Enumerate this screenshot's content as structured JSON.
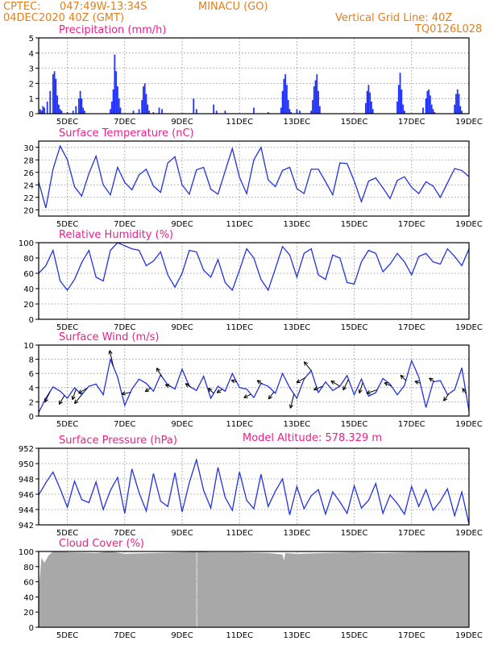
{
  "header": {
    "source": "CPTEC:",
    "coords": "047:49W-13:34S",
    "location": "MINACU (GO)",
    "run": "04DEC2020 40Z (GMT)",
    "grid_note": "Vertical Grid Line: 40Z",
    "model": "TQ0126L028"
  },
  "altitude_label": "Model Altitude: 578.329 m",
  "colors": {
    "header": "#e0801c",
    "title": "#e8208c",
    "series": "#2233dd",
    "precip": "#2233ff",
    "cloud": "#a8a8a8"
  },
  "x_labels": [
    "5DEC",
    "7DEC",
    "9DEC",
    "11DEC",
    "13DEC",
    "15DEC",
    "17DEC",
    "19DEC"
  ],
  "chart_data": [
    {
      "id": "precip",
      "type": "bar",
      "title": "Precipitation (mm/h)",
      "ylim": [
        0,
        5
      ],
      "yticks": [
        0,
        1,
        2,
        3,
        4,
        5
      ],
      "x": [
        4.05,
        4.1,
        4.15,
        4.2,
        4.3,
        4.4,
        4.5,
        4.55,
        4.6,
        4.65,
        4.7,
        4.75,
        4.8,
        5.0,
        5.2,
        5.3,
        5.4,
        5.45,
        5.5,
        5.55,
        5.6,
        6.5,
        6.55,
        6.6,
        6.65,
        6.7,
        6.75,
        6.8,
        6.85,
        7.3,
        7.5,
        7.6,
        7.65,
        7.7,
        7.75,
        7.8,
        7.85,
        8.0,
        8.2,
        8.3,
        9.4,
        9.5,
        10.1,
        10.2,
        10.5,
        11.5,
        12.0,
        12.45,
        12.5,
        12.55,
        12.6,
        12.65,
        12.7,
        12.75,
        12.8,
        13.0,
        13.1,
        13.5,
        13.55,
        13.6,
        13.65,
        13.7,
        13.75,
        13.8,
        15.4,
        15.45,
        15.5,
        15.55,
        15.6,
        15.65,
        16.5,
        16.55,
        16.6,
        16.65,
        16.7,
        16.75,
        17.4,
        17.5,
        17.55,
        17.6,
        17.65,
        17.7,
        17.75,
        17.8,
        18.5,
        18.55,
        18.6,
        18.65,
        18.7,
        18.75
      ],
      "values": [
        0.3,
        0.2,
        0.5,
        0.4,
        0.8,
        1.5,
        2.6,
        2.8,
        2.3,
        1.2,
        0.6,
        0.3,
        0.2,
        0.1,
        0.2,
        0.5,
        1.0,
        1.5,
        1.0,
        0.4,
        0.2,
        0.3,
        0.8,
        1.6,
        3.9,
        2.8,
        1.8,
        1.0,
        0.4,
        0.2,
        0.3,
        0.9,
        1.8,
        2.0,
        1.3,
        0.6,
        0.2,
        0.1,
        0.4,
        0.3,
        1.0,
        0.3,
        0.6,
        0.2,
        0.2,
        0.4,
        0.1,
        0.4,
        1.5,
        2.3,
        2.6,
        1.9,
        0.9,
        0.3,
        0.1,
        0.3,
        0.2,
        0.2,
        0.9,
        1.8,
        2.2,
        2.6,
        1.5,
        0.5,
        0.7,
        1.5,
        1.9,
        1.4,
        0.8,
        0.3,
        0.8,
        1.9,
        2.7,
        1.6,
        0.6,
        0.2,
        0.4,
        1.0,
        1.5,
        1.6,
        1.2,
        0.6,
        0.3,
        0.1,
        0.6,
        1.3,
        1.6,
        1.3,
        0.5,
        0.2
      ]
    },
    {
      "id": "temperature",
      "type": "line",
      "title": "Surface Temperature (nC)",
      "ylim": [
        19,
        31
      ],
      "yticks": [
        20,
        22,
        24,
        26,
        28,
        30
      ],
      "x": [
        4.0,
        4.25,
        4.5,
        4.75,
        5.0,
        5.25,
        5.5,
        5.75,
        6.0,
        6.25,
        6.5,
        6.75,
        7.0,
        7.25,
        7.5,
        7.75,
        8.0,
        8.25,
        8.5,
        8.75,
        9.0,
        9.25,
        9.5,
        9.75,
        10.0,
        10.25,
        10.5,
        10.75,
        11.0,
        11.25,
        11.5,
        11.75,
        12.0,
        12.25,
        12.5,
        12.75,
        13.0,
        13.25,
        13.5,
        13.75,
        14.0,
        14.25,
        14.5,
        14.75,
        15.0,
        15.25,
        15.5,
        15.75,
        16.0,
        16.25,
        16.5,
        16.75,
        17.0,
        17.25,
        17.5,
        17.75,
        18.0,
        18.25,
        18.5,
        18.75,
        19.0
      ],
      "values": [
        24.5,
        20.3,
        26.5,
        30.2,
        28.0,
        23.7,
        22.2,
        25.8,
        28.6,
        24.0,
        22.4,
        26.8,
        24.4,
        23.2,
        25.6,
        26.5,
        23.8,
        22.8,
        27.5,
        28.5,
        24.0,
        22.5,
        26.4,
        26.8,
        23.3,
        22.5,
        26.2,
        29.8,
        25.2,
        22.6,
        28.0,
        30.0,
        24.8,
        23.7,
        26.3,
        26.8,
        23.4,
        22.6,
        26.5,
        26.5,
        24.5,
        22.4,
        27.5,
        27.4,
        24.6,
        21.3,
        24.6,
        25.1,
        23.5,
        21.8,
        24.7,
        25.3,
        23.6,
        22.6,
        24.5,
        23.8,
        22.0,
        24.3,
        26.6,
        26.3,
        25.3
      ]
    },
    {
      "id": "humidity",
      "type": "line",
      "title": "Relative Humidity (%)",
      "ylim": [
        0,
        100
      ],
      "yticks": [
        0,
        20,
        40,
        60,
        80,
        100
      ],
      "x": [
        4.0,
        4.25,
        4.5,
        4.75,
        5.0,
        5.25,
        5.5,
        5.75,
        6.0,
        6.25,
        6.5,
        6.75,
        7.0,
        7.25,
        7.5,
        7.75,
        8.0,
        8.25,
        8.5,
        8.75,
        9.0,
        9.25,
        9.5,
        9.75,
        10.0,
        10.25,
        10.5,
        10.75,
        11.0,
        11.25,
        11.5,
        11.75,
        12.0,
        12.25,
        12.5,
        12.75,
        13.0,
        13.25,
        13.5,
        13.75,
        14.0,
        14.25,
        14.5,
        14.75,
        15.0,
        15.25,
        15.5,
        15.75,
        16.0,
        16.25,
        16.5,
        16.75,
        17.0,
        17.25,
        17.5,
        17.75,
        18.0,
        18.25,
        18.5,
        18.75,
        19.0
      ],
      "values": [
        60,
        70,
        90,
        50,
        38,
        52,
        74,
        90,
        55,
        50,
        90,
        100,
        96,
        92,
        90,
        70,
        76,
        88,
        58,
        42,
        60,
        90,
        88,
        64,
        55,
        78,
        48,
        38,
        64,
        92,
        80,
        52,
        38,
        66,
        95,
        84,
        55,
        86,
        92,
        58,
        52,
        84,
        80,
        48,
        46,
        75,
        90,
        86,
        62,
        72,
        86,
        75,
        58,
        82,
        86,
        75,
        72,
        92,
        82,
        70,
        92
      ]
    },
    {
      "id": "wind",
      "type": "line",
      "title": "Surface Wind (m/s)",
      "ylim": [
        0,
        10
      ],
      "yticks": [
        0,
        2,
        4,
        6,
        8,
        10
      ],
      "x": [
        4.0,
        4.25,
        4.5,
        4.75,
        5.0,
        5.25,
        5.5,
        5.75,
        6.0,
        6.25,
        6.5,
        6.75,
        7.0,
        7.25,
        7.5,
        7.75,
        8.0,
        8.25,
        8.5,
        8.75,
        9.0,
        9.25,
        9.5,
        9.75,
        10.0,
        10.25,
        10.5,
        10.75,
        11.0,
        11.25,
        11.5,
        11.75,
        12.0,
        12.25,
        12.5,
        12.75,
        13.0,
        13.25,
        13.5,
        13.75,
        14.0,
        14.25,
        14.5,
        14.75,
        15.0,
        15.25,
        15.5,
        15.75,
        16.0,
        16.25,
        16.5,
        16.75,
        17.0,
        17.25,
        17.5,
        17.75,
        18.0,
        18.25,
        18.5,
        18.75,
        19.0
      ],
      "values": [
        0.5,
        2.5,
        4.1,
        3.5,
        2.5,
        4.0,
        3.0,
        4.2,
        4.5,
        3.0,
        8.0,
        5.5,
        1.5,
        3.8,
        5.2,
        4.6,
        3.5,
        5.8,
        4.4,
        3.8,
        6.6,
        4.2,
        3.6,
        5.6,
        2.5,
        4.2,
        3.5,
        6.0,
        4.0,
        3.8,
        2.6,
        4.6,
        4.2,
        3.2,
        6.0,
        4.0,
        2.5,
        5.2,
        6.4,
        3.3,
        4.8,
        3.6,
        4.2,
        5.7,
        3.0,
        5.2,
        2.8,
        3.3,
        5.3,
        4.5,
        3.0,
        4.3,
        7.8,
        5.5,
        1.2,
        4.8,
        5.0,
        3.0,
        3.7,
        6.8,
        0.7
      ],
      "arrows": [
        {
          "x": 4.4,
          "dx": -0.3,
          "dy": -0.6
        },
        {
          "x": 4.9,
          "dx": -0.3,
          "dy": -0.5
        },
        {
          "x": 5.3,
          "dx": -0.2,
          "dy": -0.6
        },
        {
          "x": 5.5,
          "dx": -0.4,
          "dy": -0.5
        },
        {
          "x": 5.7,
          "dx": -0.5,
          "dy": -0.3
        },
        {
          "x": 6.6,
          "dx": -0.2,
          "dy": 0.9
        },
        {
          "x": 7.2,
          "dx": -0.5,
          "dy": -0.1
        },
        {
          "x": 7.9,
          "dx": -0.3,
          "dy": -0.2
        },
        {
          "x": 8.3,
          "dx": -0.3,
          "dy": 0.5
        },
        {
          "x": 8.6,
          "dx": -0.3,
          "dy": 0.1
        },
        {
          "x": 9.3,
          "dx": -0.3,
          "dy": 0.2
        },
        {
          "x": 10.1,
          "dx": -0.3,
          "dy": 0.3
        },
        {
          "x": 10.4,
          "dx": -0.3,
          "dy": -0.2
        },
        {
          "x": 10.9,
          "dx": -0.3,
          "dy": 0.1
        },
        {
          "x": 11.4,
          "dx": -0.4,
          "dy": -0.2
        },
        {
          "x": 11.8,
          "dx": -0.3,
          "dy": 0.2
        },
        {
          "x": 12.2,
          "dx": -0.3,
          "dy": -0.4
        },
        {
          "x": 12.9,
          "dx": -0.2,
          "dy": -0.8
        },
        {
          "x": 13.3,
          "dx": -0.5,
          "dy": -0.3
        },
        {
          "x": 13.5,
          "dx": -0.4,
          "dy": 0.5
        },
        {
          "x": 13.9,
          "dx": -0.5,
          "dy": -0.2
        },
        {
          "x": 14.5,
          "dx": -0.5,
          "dy": 0.3
        },
        {
          "x": 14.8,
          "dx": -0.3,
          "dy": -0.6
        },
        {
          "x": 15.3,
          "dx": -0.2,
          "dy": -0.6
        },
        {
          "x": 15.8,
          "dx": -0.6,
          "dy": -0.2
        },
        {
          "x": 16.3,
          "dx": -0.4,
          "dy": 0.2
        },
        {
          "x": 16.8,
          "dx": -0.3,
          "dy": 0.3
        },
        {
          "x": 17.3,
          "dx": -0.3,
          "dy": 0.1
        },
        {
          "x": 17.8,
          "dx": -0.3,
          "dy": 0.2
        },
        {
          "x": 18.3,
          "dx": -0.3,
          "dy": -0.4
        },
        {
          "x": 18.9,
          "dx": -0.2,
          "dy": 0.3
        }
      ]
    },
    {
      "id": "pressure",
      "type": "line",
      "title": "Surface Pressure (hPa)",
      "ylim": [
        942,
        952
      ],
      "yticks": [
        942,
        944,
        946,
        948,
        950,
        952
      ],
      "x": [
        4.0,
        4.25,
        4.5,
        4.75,
        5.0,
        5.25,
        5.5,
        5.75,
        6.0,
        6.25,
        6.5,
        6.75,
        7.0,
        7.25,
        7.5,
        7.75,
        8.0,
        8.25,
        8.5,
        8.75,
        9.0,
        9.25,
        9.5,
        9.75,
        10.0,
        10.25,
        10.5,
        10.75,
        11.0,
        11.25,
        11.5,
        11.75,
        12.0,
        12.25,
        12.5,
        12.75,
        13.0,
        13.25,
        13.5,
        13.75,
        14.0,
        14.25,
        14.5,
        14.75,
        15.0,
        15.25,
        15.5,
        15.75,
        16.0,
        16.25,
        16.5,
        16.75,
        17.0,
        17.25,
        17.5,
        17.75,
        18.0,
        18.25,
        18.5,
        18.75,
        19.0
      ],
      "values": [
        945.9,
        947.5,
        948.9,
        946.7,
        944.3,
        947.7,
        945.3,
        944.9,
        947.6,
        944.0,
        946.5,
        948.2,
        943.5,
        949.3,
        946.2,
        943.8,
        948.7,
        945.1,
        944.4,
        948.8,
        943.7,
        947.5,
        950.5,
        946.5,
        944.2,
        949.5,
        945.6,
        943.9,
        948.9,
        945.2,
        944.1,
        948.6,
        944.4,
        946.4,
        948.0,
        943.3,
        947.0,
        944.1,
        945.8,
        946.6,
        943.4,
        946.3,
        945.0,
        943.5,
        947.1,
        944.2,
        945.2,
        947.4,
        943.5,
        945.9,
        944.8,
        943.4,
        947.0,
        944.4,
        946.6,
        943.9,
        945.1,
        946.7,
        943.2,
        946.3,
        942.1
      ]
    },
    {
      "id": "cloud",
      "type": "area",
      "title": "Cloud Cover (%)",
      "ylim": [
        0,
        100
      ],
      "yticks": [
        0,
        20,
        40,
        60,
        80,
        100
      ],
      "x": [
        4.0,
        4.1,
        4.2,
        4.35,
        4.5,
        4.75,
        5.0,
        6.0,
        6.5,
        7.0,
        8.0,
        9.0,
        9.5,
        9.5,
        9.52,
        9.52,
        10.0,
        11.0,
        12.0,
        12.5,
        12.55,
        12.6,
        13.0,
        14.0,
        15.0,
        16.0,
        17.0,
        18.0,
        19.0
      ],
      "values": [
        50,
        92,
        85,
        95,
        100,
        100,
        99,
        98,
        100,
        97,
        98,
        99,
        100,
        0,
        0,
        100,
        99,
        99,
        98,
        96,
        88,
        98,
        97,
        98,
        99,
        98,
        99,
        100,
        99
      ]
    }
  ]
}
